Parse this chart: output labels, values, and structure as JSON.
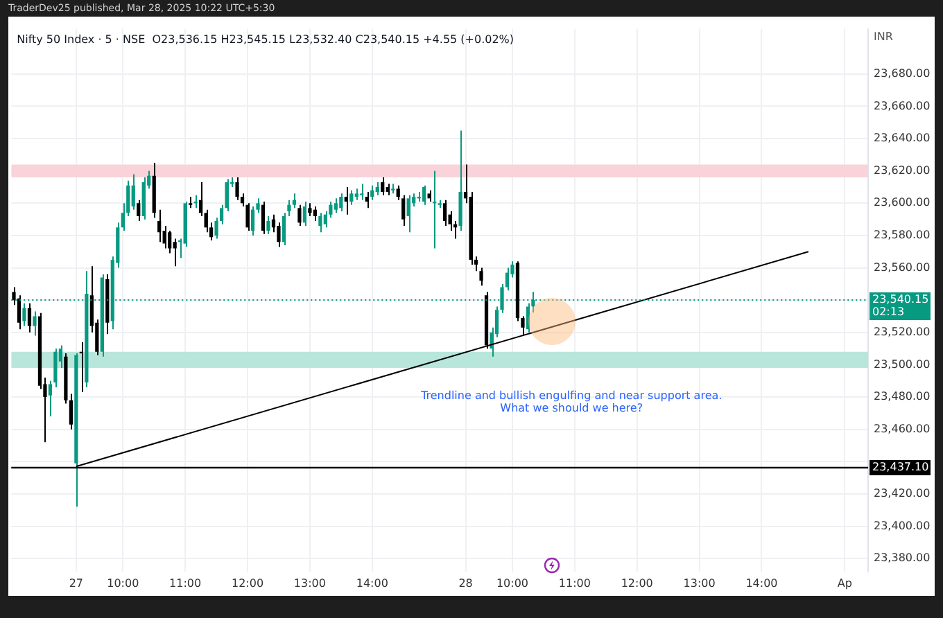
{
  "chart_data": {
    "type": "candlestick",
    "title": "TraderDev25 published, Mar 28, 2025 10:22 UTC+5:30",
    "subtitle": "Nifty 50 Index · 5 · NSE  O23,536.15 H23,545.15 L23,532.40 C23,540.15 +4.55 (+0.02%)",
    "ylabel": "INR",
    "categories": [
      null,
      null,
      null,
      null,
      null,
      null,
      null,
      null,
      null,
      null,
      null,
      null,
      "27",
      null,
      null,
      null,
      null,
      null,
      null,
      null,
      null,
      "10:00",
      null,
      null,
      null,
      null,
      null,
      null,
      null,
      null,
      null,
      null,
      null,
      "11:00",
      null,
      null,
      null,
      null,
      null,
      null,
      null,
      null,
      null,
      null,
      null,
      "12:00",
      null,
      null,
      null,
      null,
      null,
      null,
      null,
      null,
      null,
      null,
      null,
      "13:00",
      null,
      null,
      null,
      null,
      null,
      null,
      null,
      null,
      null,
      null,
      null,
      "14:00",
      null,
      null,
      null,
      null,
      null,
      null,
      null,
      null,
      null,
      null,
      null,
      null,
      null,
      null,
      null,
      null,
      null,
      "28",
      null,
      null,
      null,
      null,
      null,
      null,
      null,
      null,
      "10:00",
      null,
      null,
      null,
      null,
      null,
      null,
      null,
      null,
      null,
      null,
      null,
      "11:00",
      null,
      null,
      null,
      null,
      null,
      null,
      null,
      null,
      null,
      null,
      null,
      "12:00",
      null,
      null,
      null,
      null,
      null,
      null,
      null,
      null,
      null,
      null,
      null,
      "13:00",
      null,
      null,
      null,
      null,
      null,
      null,
      null,
      null,
      null,
      null,
      null,
      "14:00",
      null,
      null,
      null,
      null,
      null,
      null,
      null,
      null,
      null,
      null,
      null,
      null,
      null,
      null,
      null,
      "Ap",
      null,
      null,
      null,
      null
    ],
    "ohlc": [
      [
        23545,
        23548,
        23537,
        23540
      ],
      [
        23541,
        23543,
        23522,
        23526
      ],
      [
        23527,
        23538,
        23524,
        23535
      ],
      [
        23535,
        23538,
        23520,
        23524
      ],
      [
        23524,
        23533,
        23518,
        23530
      ],
      [
        23530,
        23532,
        23485,
        23487
      ],
      [
        23488,
        23492,
        23452,
        23480
      ],
      [
        23481,
        23490,
        23468,
        23488
      ],
      [
        23489,
        23510,
        23486,
        23508
      ],
      [
        23502,
        23512,
        23498,
        23510
      ],
      [
        23505,
        23507,
        23476,
        23478
      ],
      [
        23478,
        23482,
        23460,
        23463
      ],
      [
        23439,
        23507,
        23412,
        23506
      ],
      [
        23508,
        23514,
        23483,
        23507
      ],
      [
        23489,
        23558,
        23486,
        23544
      ],
      [
        23543,
        23561,
        23520,
        23524
      ],
      [
        23526,
        23528,
        23506,
        23508
      ],
      [
        23508,
        23556,
        23505,
        23554
      ],
      [
        23553,
        23556,
        23519,
        23526
      ],
      [
        23527,
        23567,
        23522,
        23565
      ],
      [
        23563,
        23588,
        23560,
        23585
      ],
      [
        23585,
        23600,
        23583,
        23594
      ],
      [
        23594,
        23614,
        23592,
        23611
      ],
      [
        23598,
        23618,
        23596,
        23611
      ],
      [
        23600,
        23602,
        23589,
        23592
      ],
      [
        23592,
        23616,
        23590,
        23613
      ],
      [
        23611,
        23620,
        23609,
        23617
      ],
      [
        23617,
        23625,
        23591,
        23594
      ],
      [
        23589,
        23596,
        23576,
        23582
      ],
      [
        23583,
        23586,
        23572,
        23575
      ],
      [
        23582,
        23583,
        23569,
        23572
      ],
      [
        23576,
        23578,
        23561,
        23572
      ],
      [
        23576,
        23578,
        23566,
        23577
      ],
      [
        23575,
        23601,
        23573,
        23600
      ],
      [
        23600,
        23604,
        23597,
        23599
      ],
      [
        23600,
        23605,
        23597,
        23601
      ],
      [
        23602,
        23613,
        23592,
        23594
      ],
      [
        23594,
        23596,
        23582,
        23585
      ],
      [
        23585,
        23588,
        23577,
        23579
      ],
      [
        23580,
        23591,
        23578,
        23589
      ],
      [
        23589,
        23599,
        23587,
        23597
      ],
      [
        23597,
        23615,
        23595,
        23613
      ],
      [
        23612,
        23616,
        23610,
        23613
      ],
      [
        23613,
        23616,
        23602,
        23604
      ],
      [
        23604,
        23606,
        23598,
        23600
      ],
      [
        23599,
        23600,
        23583,
        23585
      ],
      [
        23583,
        23598,
        23580,
        23596
      ],
      [
        23596,
        23603,
        23594,
        23600
      ],
      [
        23599,
        23601,
        23581,
        23583
      ],
      [
        23583,
        23592,
        23581,
        23589
      ],
      [
        23590,
        23593,
        23582,
        23585
      ],
      [
        23586,
        23588,
        23573,
        23576
      ],
      [
        23576,
        23594,
        23574,
        23592
      ],
      [
        23595,
        23602,
        23592,
        23599
      ],
      [
        23599,
        23606,
        23597,
        23602
      ],
      [
        23597,
        23599,
        23586,
        23588
      ],
      [
        23588,
        23601,
        23586,
        23598
      ],
      [
        23597,
        23600,
        23592,
        23594
      ],
      [
        23596,
        23598,
        23589,
        23592
      ],
      [
        23586,
        23594,
        23582,
        23592
      ],
      [
        23587,
        23595,
        23585,
        23593
      ],
      [
        23593,
        23601,
        23591,
        23599
      ],
      [
        23596,
        23603,
        23594,
        23600
      ],
      [
        23597,
        23606,
        23595,
        23604
      ],
      [
        23604,
        23610,
        23593,
        23601
      ],
      [
        23601,
        23608,
        23599,
        23606
      ],
      [
        23604,
        23609,
        23602,
        23606
      ],
      [
        23605,
        23612,
        23602,
        23606
      ],
      [
        23604,
        23607,
        23597,
        23601
      ],
      [
        23604,
        23611,
        23602,
        23608
      ],
      [
        23607,
        23613,
        23605,
        23610
      ],
      [
        23613,
        23616,
        23605,
        23607
      ],
      [
        23610,
        23612,
        23605,
        23607
      ],
      [
        23608,
        23612,
        23606,
        23609
      ],
      [
        23609,
        23611,
        23602,
        23604
      ],
      [
        23603,
        23605,
        23586,
        23590
      ],
      [
        23592,
        23605,
        23582,
        23603
      ],
      [
        23600,
        23606,
        23598,
        23604
      ],
      [
        23603,
        23607,
        23601,
        23604
      ],
      [
        23601,
        23611,
        23599,
        23610
      ],
      [
        23606,
        23608,
        23601,
        23603
      ],
      [
        23600,
        23620,
        23572,
        23601
      ],
      [
        23599,
        23602,
        23597,
        23600
      ],
      [
        23600,
        23602,
        23586,
        23589
      ],
      [
        23593,
        23595,
        23583,
        23587
      ],
      [
        23587,
        23589,
        23578,
        23585
      ],
      [
        23586,
        23645,
        23583,
        23607
      ],
      [
        23607,
        23624,
        23600,
        23603
      ],
      [
        23604,
        23607,
        23562,
        23565
      ],
      [
        23565,
        23567,
        23558,
        23562
      ],
      [
        23558,
        23560,
        23549,
        23552
      ],
      [
        23543,
        23545,
        23510,
        23512
      ],
      [
        23510,
        23523,
        23505,
        23520
      ],
      [
        23519,
        23536,
        23517,
        23534
      ],
      [
        23534,
        23550,
        23532,
        23548
      ],
      [
        23548,
        23560,
        23546,
        23557
      ],
      [
        23556,
        23564,
        23554,
        23562
      ],
      [
        23563,
        23564,
        23527,
        23529
      ],
      [
        23529,
        23530,
        23518,
        23523
      ],
      [
        23522,
        23538,
        23520,
        23536
      ],
      [
        23536.15,
        23545.15,
        23532.4,
        23540.15
      ],
      null,
      null,
      null,
      null,
      null,
      null,
      null,
      null,
      null,
      null,
      null,
      null,
      null,
      null,
      null,
      null,
      null,
      null,
      null,
      null,
      null,
      null,
      null,
      null,
      null,
      null,
      null,
      null,
      null,
      null,
      null,
      null,
      null,
      null,
      null,
      null,
      null,
      null,
      null,
      null,
      null,
      null,
      null,
      null,
      null,
      null,
      null,
      null,
      null,
      null,
      null,
      null,
      null,
      null,
      null,
      null,
      null,
      null,
      null,
      null,
      null,
      null,
      null,
      null
    ],
    "colors": [
      "#000000",
      "#000000",
      "#089981",
      "#000000",
      "#089981",
      "#000000",
      "#000000",
      "#089981",
      "#089981",
      "#089981",
      "#000000",
      "#000000",
      "#089981",
      "#000000",
      "#089981",
      "#000000",
      "#000000",
      "#089981",
      "#000000",
      "#089981",
      "#089981",
      "#089981",
      "#089981",
      "#089981",
      "#000000",
      "#089981",
      "#089981",
      "#000000",
      "#000000",
      "#000000",
      "#000000",
      "#000000",
      "#089981",
      "#089981",
      "#000000",
      "#089981",
      "#000000",
      "#000000",
      "#000000",
      "#089981",
      "#089981",
      "#089981",
      "#089981",
      "#000000",
      "#000000",
      "#000000",
      "#089981",
      "#089981",
      "#000000",
      "#089981",
      "#000000",
      "#000000",
      "#089981",
      "#089981",
      "#089981",
      "#000000",
      "#089981",
      "#000000",
      "#000000",
      "#089981",
      "#089981",
      "#089981",
      "#089981",
      "#089981",
      "#000000",
      "#089981",
      "#089981",
      "#089981",
      "#000000",
      "#089981",
      "#089981",
      "#000000",
      "#000000",
      "#089981",
      "#000000",
      "#000000",
      "#089981",
      "#089981",
      "#089981",
      "#089981",
      "#000000",
      "#089981",
      "#089981",
      "#000000",
      "#000000",
      "#000000",
      "#089981",
      "#000000",
      "#000000",
      "#000000",
      "#000000",
      "#000000",
      "#089981",
      "#089981",
      "#089981",
      "#089981",
      "#089981",
      "#000000",
      "#000000",
      "#089981",
      "#089981",
      null,
      null,
      null,
      null,
      null,
      null,
      null,
      null,
      null,
      null,
      null,
      null,
      null,
      null,
      null,
      null,
      null,
      null,
      null,
      null,
      null,
      null,
      null,
      null,
      null,
      null,
      null,
      null,
      null,
      null,
      null,
      null,
      null,
      null,
      null,
      null,
      null,
      null,
      null,
      null,
      null,
      null,
      null,
      null,
      null,
      null,
      null,
      null,
      null,
      null,
      null,
      null,
      null,
      null,
      null,
      null,
      null,
      null,
      null,
      null,
      null,
      null,
      null,
      null
    ],
    "series": [
      {
        "type": "line",
        "color": "#000000",
        "values": [
          null,
          null,
          null,
          null,
          null,
          null,
          null,
          null,
          null,
          null,
          null,
          null,
          23437,
          null,
          null,
          null,
          null,
          null,
          null,
          null,
          null,
          null,
          null,
          null,
          null,
          null,
          null,
          null,
          null,
          null,
          null,
          null,
          null,
          null,
          null,
          null,
          null,
          null,
          null,
          null,
          null,
          null,
          null,
          null,
          null,
          null,
          null,
          null,
          null,
          null,
          null,
          null,
          null,
          null,
          null,
          null,
          null,
          null,
          null,
          null,
          null,
          null,
          null,
          null,
          null,
          null,
          null,
          null,
          null,
          null,
          null,
          null,
          null,
          null,
          null,
          null,
          null,
          null,
          null,
          null,
          null,
          null,
          null,
          null,
          null,
          null,
          null,
          null,
          null,
          null,
          null,
          null,
          null,
          null,
          null,
          null,
          null,
          null,
          null,
          null,
          null,
          null,
          null,
          null,
          null,
          null,
          null,
          null,
          null,
          null,
          null,
          null,
          null,
          null,
          null,
          null,
          null,
          null,
          null,
          null,
          null,
          null,
          null,
          null,
          null,
          null,
          null,
          null,
          null,
          null,
          null,
          null,
          null,
          null,
          null,
          null,
          null,
          null,
          null,
          null,
          null,
          null,
          null,
          null,
          null,
          null,
          null,
          null,
          null,
          null,
          null,
          null,
          null,
          23570,
          null,
          null,
          null,
          null,
          null,
          null,
          null,
          null,
          null,
          null,
          null
        ]
      }
    ],
    "ylim": [
      23372,
      23708
    ],
    "yticks": [
      {
        "value": 23380,
        "label": "23,380.00"
      },
      {
        "value": 23400,
        "label": "23,400.00"
      },
      {
        "value": 23420,
        "label": "23,420.00"
      },
      {
        "value": 23440,
        "label": null
      },
      {
        "value": 23460,
        "label": "23,460.00"
      },
      {
        "value": 23480,
        "label": "23,480.00"
      },
      {
        "value": 23500,
        "label": "23,500.00"
      },
      {
        "value": 23520,
        "label": "23,520.00"
      },
      {
        "value": 23540,
        "label": null
      },
      {
        "value": 23560,
        "label": "23,560.00"
      },
      {
        "value": 23580,
        "label": "23,580.00"
      },
      {
        "value": 23600,
        "label": "23,600.00"
      },
      {
        "value": 23620,
        "label": "23,620.00"
      },
      {
        "value": 23640,
        "label": "23,640.00"
      },
      {
        "value": 23660,
        "label": "23,660.00"
      },
      {
        "value": 23680,
        "label": "23,680.00"
      }
    ],
    "grid": true,
    "bands": [
      {
        "axis": "y",
        "from": 23616,
        "to": 23624,
        "color": "#f9d3d9"
      },
      {
        "axis": "y",
        "from": 23498,
        "to": 23508,
        "color": "#b9e6da"
      }
    ],
    "ref_lines": [
      {
        "axis": "y",
        "value": 23437.1,
        "label": "23,437.10",
        "color": "#000000"
      },
      {
        "axis": "y",
        "value": 23540.15,
        "label": "23,540.15",
        "color": "#089981",
        "line_style": "dotted"
      }
    ],
    "annotations": [
      "Trendline and bullish engulfing and near support area.",
      "What we should we here?",
      "02:13"
    ]
  }
}
